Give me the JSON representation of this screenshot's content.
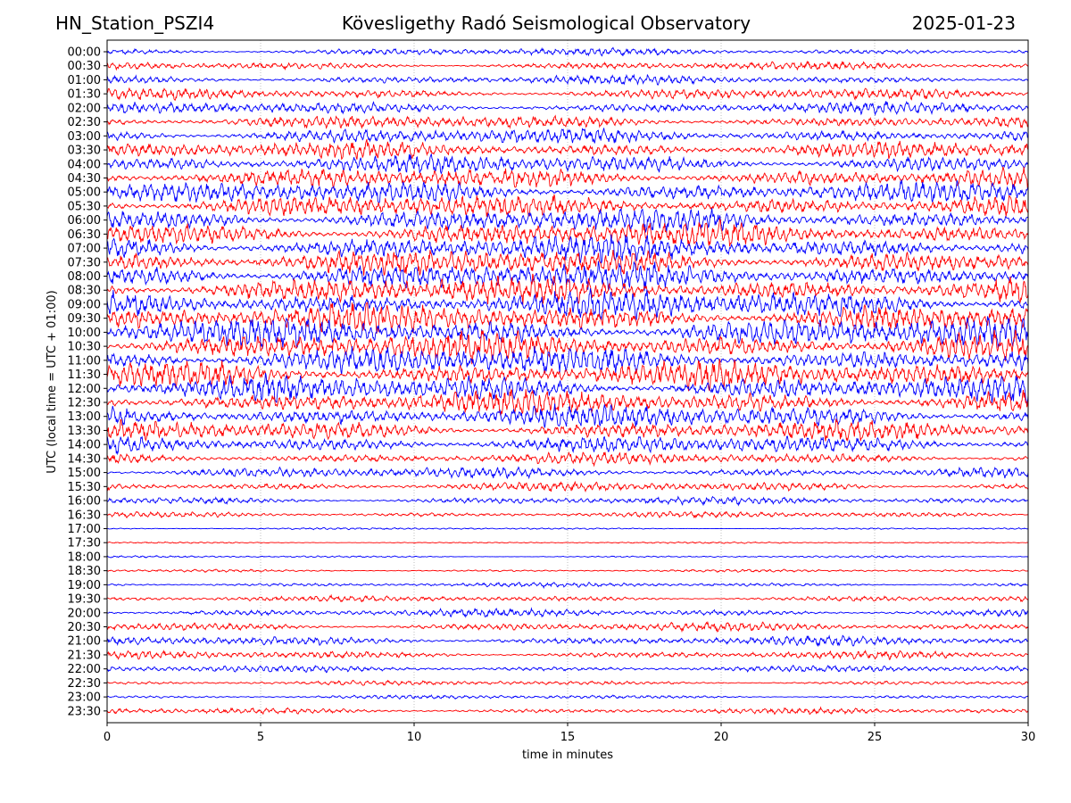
{
  "header": {
    "station": "HN_Station_PSZI4",
    "observatory": "Kövesligethy Radó Seismological Observatory",
    "date": "2025-01-23"
  },
  "chart_data": {
    "type": "line",
    "title": "Kövesligethy Radó Seismological Observatory",
    "xlabel": "time in minutes",
    "ylabel": "UTC (local time = UTC + 01:00)",
    "xlim": [
      0,
      30
    ],
    "xticks": [
      0,
      5,
      10,
      15,
      20,
      25,
      30
    ],
    "grid": "vertical dotted lines at x ticks",
    "colors": {
      "even_rows": "#0000ff",
      "odd_rows": "#ff0000"
    },
    "row_labels": [
      "00:00",
      "00:30",
      "01:00",
      "01:30",
      "02:00",
      "02:30",
      "03:00",
      "03:30",
      "04:00",
      "04:30",
      "05:00",
      "05:30",
      "06:00",
      "06:30",
      "07:00",
      "07:30",
      "08:00",
      "08:30",
      "09:00",
      "09:30",
      "10:00",
      "10:30",
      "11:00",
      "11:30",
      "12:00",
      "12:30",
      "13:00",
      "13:30",
      "14:00",
      "14:30",
      "15:00",
      "15:30",
      "16:00",
      "16:30",
      "17:00",
      "17:30",
      "18:00",
      "18:30",
      "19:00",
      "19:30",
      "20:00",
      "20:30",
      "21:00",
      "21:30",
      "22:00",
      "22:30",
      "23:00",
      "23:30"
    ],
    "relative_amplitude": [
      0.55,
      0.6,
      0.7,
      0.8,
      0.9,
      1.0,
      1.2,
      1.3,
      1.4,
      1.5,
      1.6,
      1.7,
      1.8,
      1.9,
      2.0,
      2.0,
      2.1,
      2.1,
      2.2,
      2.2,
      2.2,
      2.2,
      2.1,
      2.1,
      2.0,
      1.9,
      1.8,
      1.5,
      1.3,
      0.9,
      0.8,
      0.7,
      0.6,
      0.45,
      0.15,
      0.12,
      0.15,
      0.2,
      0.35,
      0.45,
      0.6,
      0.65,
      0.7,
      0.6,
      0.5,
      0.35,
      0.3,
      0.45
    ]
  }
}
